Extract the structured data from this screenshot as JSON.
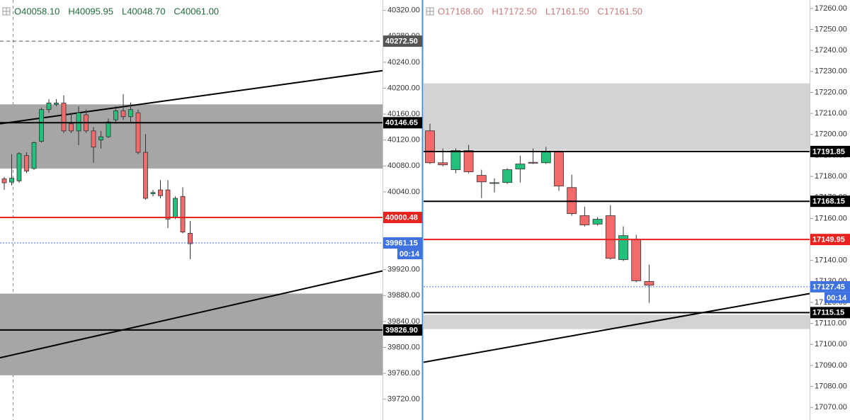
{
  "chart_data": [
    {
      "type": "candlestick",
      "ohlc": [
        "O40058.10",
        "H40095.95",
        "L40048.70",
        "C40061.00"
      ],
      "ylim": [
        39688,
        40336
      ],
      "yticks": [
        {
          "value": 40320,
          "label": "40320.00"
        },
        {
          "value": 40280,
          "label": "40280.00"
        },
        {
          "value": 40240,
          "label": "40240.00"
        },
        {
          "value": 40200,
          "label": "40200.00"
        },
        {
          "value": 40160,
          "label": "40160.00"
        },
        {
          "value": 40120,
          "label": "40120.00"
        },
        {
          "value": 40080,
          "label": "40080.00"
        },
        {
          "value": 40040,
          "label": "40040.00"
        },
        {
          "value": 40000,
          "label": "40000.00"
        },
        {
          "value": 39960,
          "label": "39960.00"
        },
        {
          "value": 39920,
          "label": "39920.00"
        },
        {
          "value": 39880,
          "label": "39880.00"
        },
        {
          "value": 39840,
          "label": "39840.00"
        },
        {
          "value": 39800,
          "label": "39800.00"
        },
        {
          "value": 39760,
          "label": "39760.00"
        },
        {
          "value": 39720,
          "label": "39720.00"
        }
      ],
      "up_color": "#22c07a",
      "down_color": "#f26a6a",
      "zone_color": "#a6a6a6",
      "open": [
        40060,
        40055,
        40057,
        40096,
        40076,
        40118,
        40167,
        40175,
        40177,
        40145,
        40134,
        40159,
        40134,
        40120,
        40125,
        40151,
        40165,
        40156,
        40162,
        40101,
        40037,
        40043,
        40043,
        40001,
        40033,
        39976
      ],
      "high": [
        40063,
        40098,
        40101,
        40101,
        40118,
        40170,
        40183,
        40183,
        40189,
        40162,
        40172,
        40167,
        40140,
        40134,
        40153,
        40172,
        40191,
        40178,
        40167,
        40129,
        40043,
        40058,
        40058,
        40033,
        40047,
        39995
      ],
      "low": [
        40043,
        40050,
        40054,
        40069,
        40074,
        40116,
        40162,
        40172,
        40131,
        40131,
        40112,
        40131,
        40085,
        40107,
        40123,
        40145,
        40151,
        40148,
        40098,
        40028,
        40033,
        40030,
        39984,
        39998,
        39976,
        39936
      ],
      "close": [
        40054,
        40061,
        40099,
        40072,
        40116,
        40167,
        40177,
        40177,
        40134,
        40134,
        40162,
        40134,
        40109,
        40125,
        40148,
        40165,
        40156,
        40167,
        40101,
        40030,
        40039,
        40034,
        39998,
        40030,
        39978,
        39960
      ],
      "zones": [
        {
          "from": 40076,
          "to": 40175
        },
        {
          "from": 39757,
          "to": 39883
        }
      ],
      "trendlines": [
        [
          40145,
          40227
        ],
        [
          39784,
          39918
        ]
      ],
      "levels": [
        {
          "price": {
            "value": 40272.5,
            "label": "40272.50"
          },
          "color": "#555555",
          "style": "dashed"
        },
        {
          "price": 40146.65,
          "color": "#000000",
          "style": "solid"
        },
        {
          "price": 40000.48,
          "color": "#e8231f",
          "style": "solid"
        },
        {
          "price": 39961.15,
          "color": "#3d72e0",
          "style": "dotted"
        },
        {
          "price": {
            "value": 39826.9,
            "label": "39826.90"
          },
          "color": "#000000",
          "style": "solid"
        }
      ],
      "countdown": "00:14"
    },
    {
      "type": "candlestick",
      "ohlc": [
        "O17168.60",
        "H17172.50",
        "L17161.50",
        "C17161.50"
      ],
      "ylim": [
        17064,
        17264
      ],
      "yticks": [
        {
          "value": 17260,
          "label": "17260.00"
        },
        {
          "value": 17250,
          "label": "17250.00"
        },
        {
          "value": 17240,
          "label": "17240.00"
        },
        {
          "value": 17230,
          "label": "17230.00"
        },
        {
          "value": 17220,
          "label": "17220.00"
        },
        {
          "value": 17210,
          "label": "17210.00"
        },
        {
          "value": 17200,
          "label": "17200.00"
        },
        {
          "value": 17190,
          "label": "17190.00"
        },
        {
          "value": 17180,
          "label": "17180.00"
        },
        {
          "value": 17170,
          "label": "17170.00"
        },
        {
          "value": 17160,
          "label": "17160.00"
        },
        {
          "value": 17150,
          "label": "17150.00"
        },
        {
          "value": 17140,
          "label": "17140.00"
        },
        {
          "value": 17130,
          "label": "17130.00"
        },
        {
          "value": 17120,
          "label": "17120.00"
        },
        {
          "value": 17110,
          "label": "17110.00"
        },
        {
          "value": 17100,
          "label": "17100.00"
        },
        {
          "value": 17090,
          "label": "17090.00"
        },
        {
          "value": 17080,
          "label": "17080.00"
        },
        {
          "value": 17070,
          "label": "17070.00"
        }
      ],
      "up_color": "#22c07a",
      "down_color": "#f26a6a",
      "zone_color": "#d3d3d3",
      "open": [
        17201.7,
        17186.5,
        17183.2,
        17192.3,
        17180.5,
        17176.7,
        17177.1,
        17183.5,
        17186.7,
        17186.5,
        17191.6,
        17174.7,
        17161.3,
        17157.3,
        17161.3,
        17140.4,
        17150.1,
        17130
      ],
      "high": [
        17205.1,
        17193.3,
        17193.3,
        17195,
        17183.2,
        17179.1,
        17183.9,
        17189.9,
        17193.3,
        17194,
        17192.3,
        17180.8,
        17165.6,
        17160.6,
        17166.3,
        17156.2,
        17152.2,
        17138
      ],
      "low": [
        17185.9,
        17184.8,
        17181.5,
        17181.5,
        17169.7,
        17172.4,
        17176.4,
        17177.1,
        17185.9,
        17185.9,
        17173.1,
        17161.3,
        17156.2,
        17156.6,
        17140.4,
        17139.7,
        17129.6,
        17119.8
      ],
      "close": [
        17186.5,
        17185.5,
        17192.3,
        17182.2,
        17177.4,
        17177,
        17183.2,
        17185.9,
        17186.3,
        17191.6,
        17175.4,
        17162.3,
        17156.9,
        17159.6,
        17141,
        17151.8,
        17130.3,
        17128.2
      ],
      "zones": [
        {
          "from": 17192.6,
          "to": 17224.3
        },
        {
          "from": 17107.3,
          "to": 17114.1
        }
      ],
      "trendlines": [
        [
          17091.5,
          17124.2
        ]
      ],
      "levels": [
        {
          "price": 17191.85,
          "color": "#000000",
          "style": "solid"
        },
        {
          "price": 17168.15,
          "color": "#000000",
          "style": "solid"
        },
        {
          "price": 17149.95,
          "color": "#e8231f",
          "style": "solid"
        },
        {
          "price": 17127.45,
          "color": "#3d72e0",
          "style": "dotted"
        },
        {
          "price": 17115.15,
          "color": "#000000",
          "style": "solid"
        }
      ],
      "countdown": "00:14"
    }
  ]
}
